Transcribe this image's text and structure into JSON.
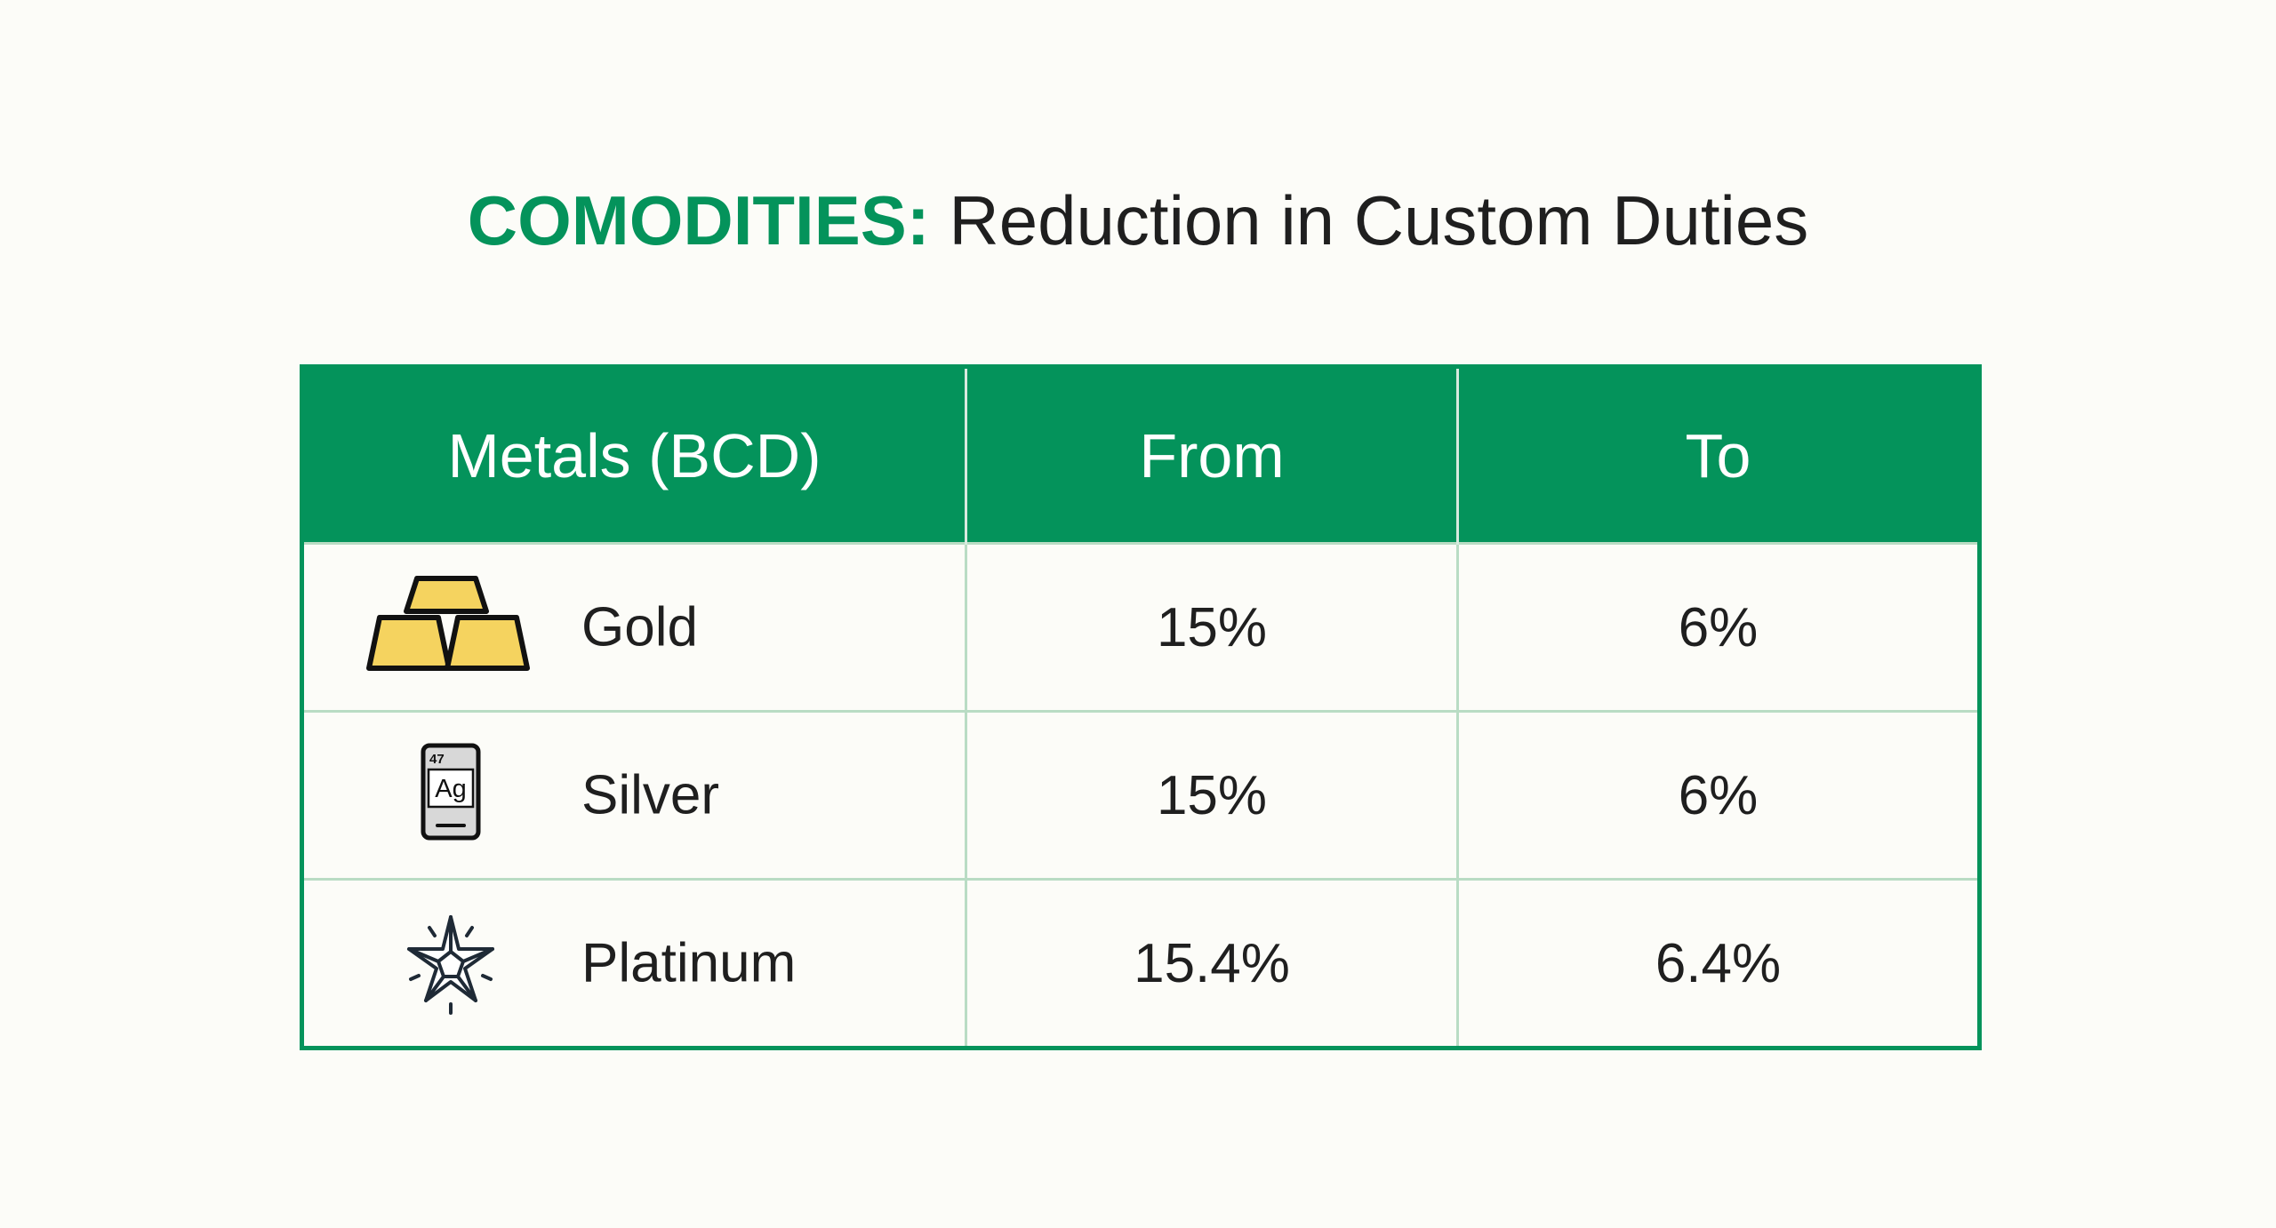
{
  "title": {
    "accent": "COMODITIES:",
    "rest": " Reduction in Custom Duties"
  },
  "colors": {
    "brand_green": "#04935b",
    "gold_fill": "#f5d35f",
    "row_divider": "#b9dcc4",
    "background": "#fcfcf8"
  },
  "chart_data": {
    "type": "table",
    "title": "COMODITIES: Reduction in Custom Duties",
    "columns": [
      "Metals (BCD)",
      "From",
      "To"
    ],
    "rows": [
      {
        "metal": "Gold",
        "icon": "gold-bars-icon",
        "from": "15%",
        "to": "6%"
      },
      {
        "metal": "Silver",
        "icon": "silver-element-icon",
        "icon_text": {
          "number": "47",
          "symbol": "Ag"
        },
        "from": "15%",
        "to": "6%"
      },
      {
        "metal": "Platinum",
        "icon": "platinum-star-icon",
        "from": "15.4%",
        "to": "6.4%"
      }
    ]
  }
}
